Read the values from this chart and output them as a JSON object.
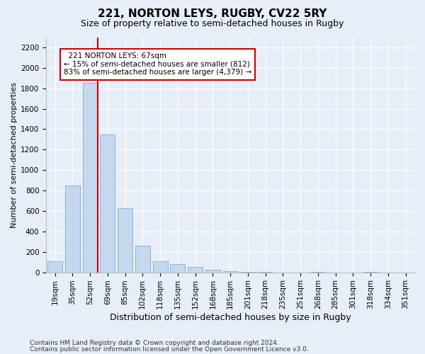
{
  "title": "221, NORTON LEYS, RUGBY, CV22 5RY",
  "subtitle": "Size of property relative to semi-detached houses in Rugby",
  "xlabel": "Distribution of semi-detached houses by size in Rugby",
  "ylabel": "Number of semi-detached properties",
  "footnote1": "Contains HM Land Registry data © Crown copyright and database right 2024.",
  "footnote2": "Contains public sector information licensed under the Open Government Licence v3.0.",
  "annotation_title": "221 NORTON LEYS: 67sqm",
  "annotation_line1": "← 15% of semi-detached houses are smaller (812)",
  "annotation_line2": "83% of semi-detached houses are larger (4,379) →",
  "bar_categories": [
    "19sqm",
    "35sqm",
    "52sqm",
    "69sqm",
    "85sqm",
    "102sqm",
    "118sqm",
    "135sqm",
    "152sqm",
    "168sqm",
    "185sqm",
    "201sqm",
    "218sqm",
    "235sqm",
    "251sqm",
    "268sqm",
    "285sqm",
    "301sqm",
    "318sqm",
    "334sqm",
    "351sqm"
  ],
  "bar_values": [
    105,
    850,
    1850,
    1350,
    630,
    260,
    110,
    80,
    50,
    25,
    10,
    5,
    5,
    0,
    0,
    5,
    0,
    0,
    5,
    0,
    0
  ],
  "bar_color": "#c5d8ee",
  "bar_edge_color": "#7aadd4",
  "vline_color": "#cc0000",
  "vline_bin_index": 2,
  "ylim": [
    0,
    2300
  ],
  "yticks": [
    0,
    200,
    400,
    600,
    800,
    1000,
    1200,
    1400,
    1600,
    1800,
    2000,
    2200
  ],
  "background_color": "#e8eef8",
  "plot_background": "#e8eef8",
  "annotation_box_facecolor": "#ffffff",
  "annotation_box_edgecolor": "#cc0000",
  "grid_color": "#ffffff",
  "title_fontsize": 11,
  "subtitle_fontsize": 9,
  "xlabel_fontsize": 9,
  "ylabel_fontsize": 8,
  "tick_fontsize": 7.5,
  "annotation_fontsize": 7.5,
  "footnote_fontsize": 6.5
}
